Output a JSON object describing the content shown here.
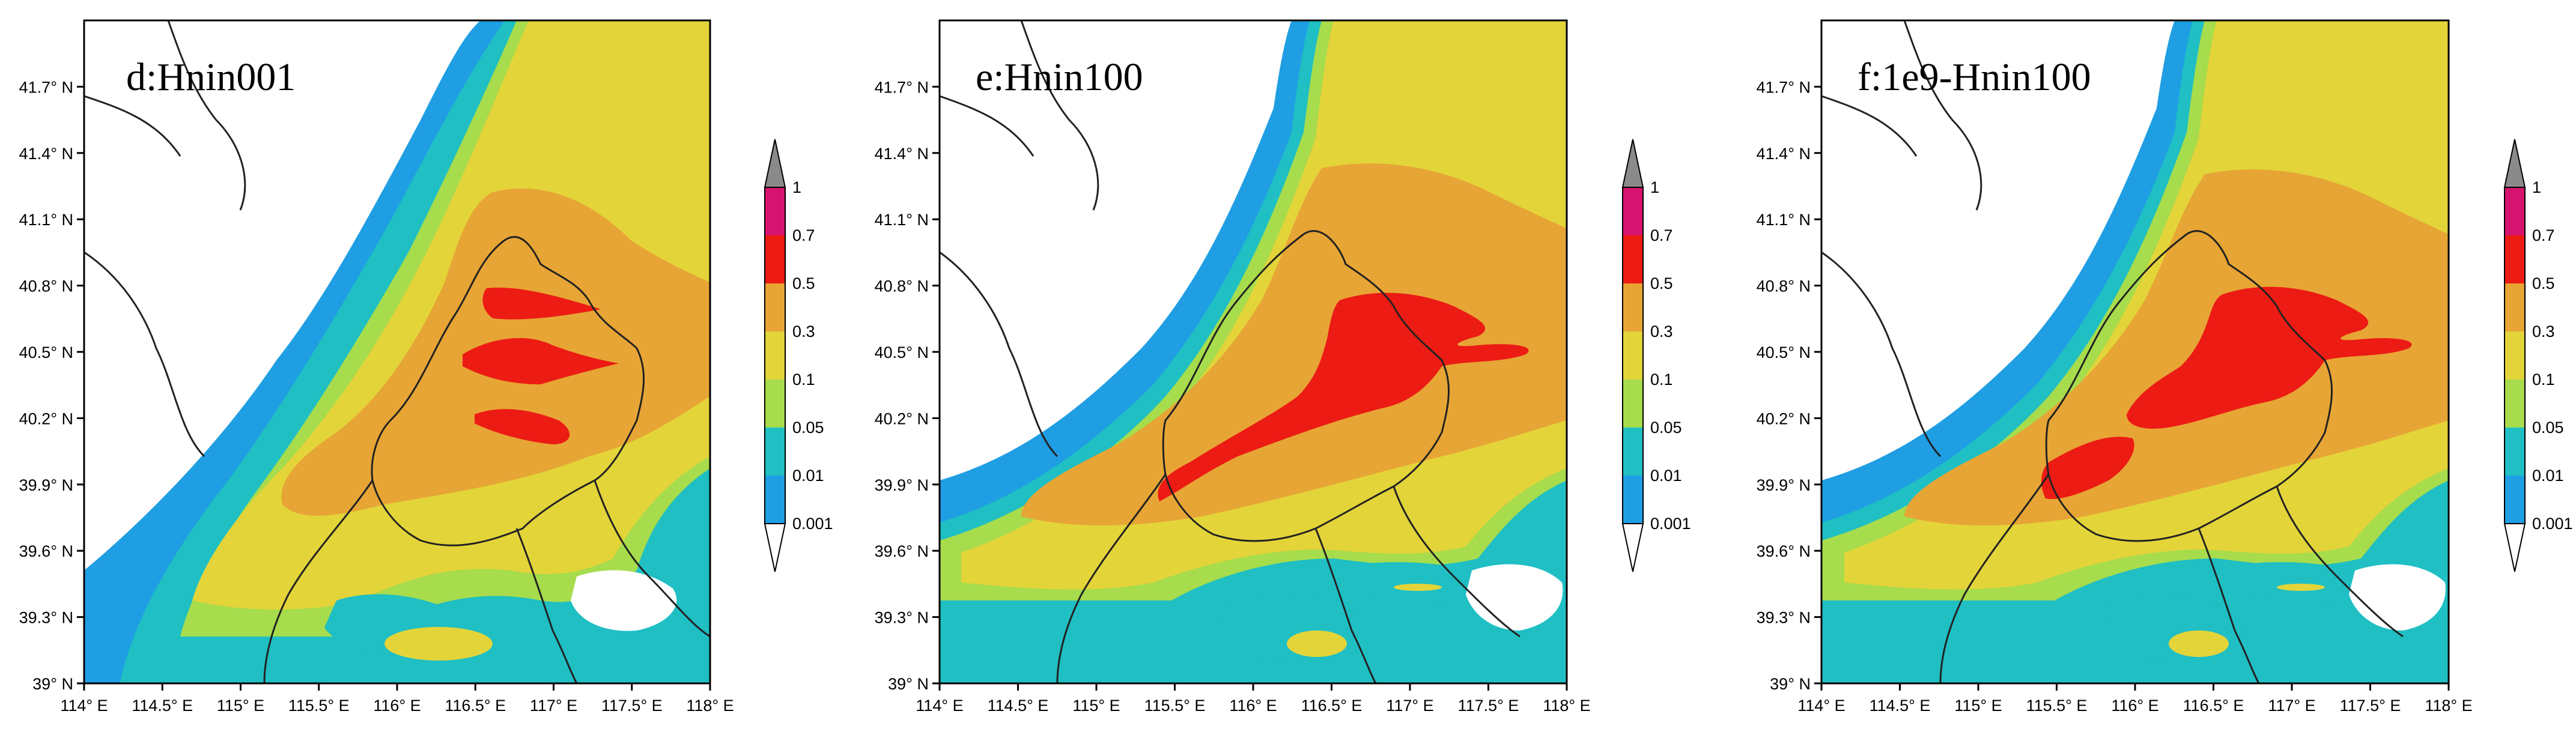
{
  "figure": {
    "panels": [
      {
        "id": "d",
        "title": "d:Hnin001"
      },
      {
        "id": "e",
        "title": "e:Hnin100"
      },
      {
        "id": "f",
        "title": "f:1e9-Hnin100"
      }
    ],
    "axes": {
      "lon_ticks": [
        "114° E",
        "114.5° E",
        "115° E",
        "115.5° E",
        "116° E",
        "116.5° E",
        "117° E",
        "117.5° E",
        "118° E"
      ],
      "lat_ticks": [
        "39° N",
        "39.3° N",
        "39.6° N",
        "39.9° N",
        "40.2° N",
        "40.5° N",
        "40.8° N",
        "41.1° N",
        "41.4° N",
        "41.7° N"
      ],
      "lon_range": [
        114,
        118
      ],
      "lat_range": [
        39,
        42
      ]
    },
    "colorbar": {
      "levels": [
        "0.001",
        "0.01",
        "0.05",
        "0.1",
        "0.3",
        "0.5",
        "0.7",
        "1"
      ],
      "colors": [
        "#ffffff",
        "#1f9ee3",
        "#1fbfc4",
        "#a7dc4c",
        "#e3d43a",
        "#e7a535",
        "#ec1b14",
        "#d6136e",
        "#8a8a8a"
      ]
    },
    "map_colors": {
      "background": "#ffffff",
      "boundary": "#222222"
    }
  }
}
